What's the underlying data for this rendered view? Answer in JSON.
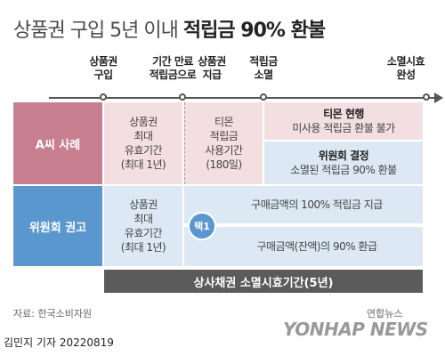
{
  "title": {
    "part1": "상품권 구입 5년 이내 ",
    "part2": "적립금 90% 환불"
  },
  "timeline": [
    {
      "label": "상품권\n구입"
    },
    {
      "label": "기간 만료\n적립금으로"
    },
    {
      "label": "상품권\n지급"
    },
    {
      "label": "적립금\n소멸"
    },
    {
      "label": "소멸시효\n완성"
    }
  ],
  "row_a": {
    "label": "A씨 사례",
    "c1": "상품권\n최대\n유효기간\n(최대 1년)",
    "c2": "티몬\n적립금\n사용기간\n(180일)",
    "c3_title": "티몬 현행",
    "c3_text": "미사용 적립금 환불 불가",
    "c4_title": "위원회 결정",
    "c4_text": "소멸된 적립금 90% 환불"
  },
  "row_b": {
    "label": "위원회 권고",
    "c1": "상품권\n최대\n유효기간\n(최대 1년)",
    "badge": "택1",
    "opt1": "구매금액의 100% 적립금 지급",
    "opt2": "구매금액(잔액)의 90% 환급"
  },
  "bottom_bar": "상사채권 소멸시효기간(5년)",
  "source": "자료: 한국소비자원",
  "byline": "김민지 기자  20220819",
  "logo_top": "연합뉴스",
  "logo_bottom": "YONHAP NEWS",
  "colors": {
    "pink_head": "#c77f8f",
    "blue_head": "#5b97cf",
    "pink_cell": "#f3dee2",
    "blue_cell": "#dce9f4",
    "bar": "#5b5b5b"
  }
}
